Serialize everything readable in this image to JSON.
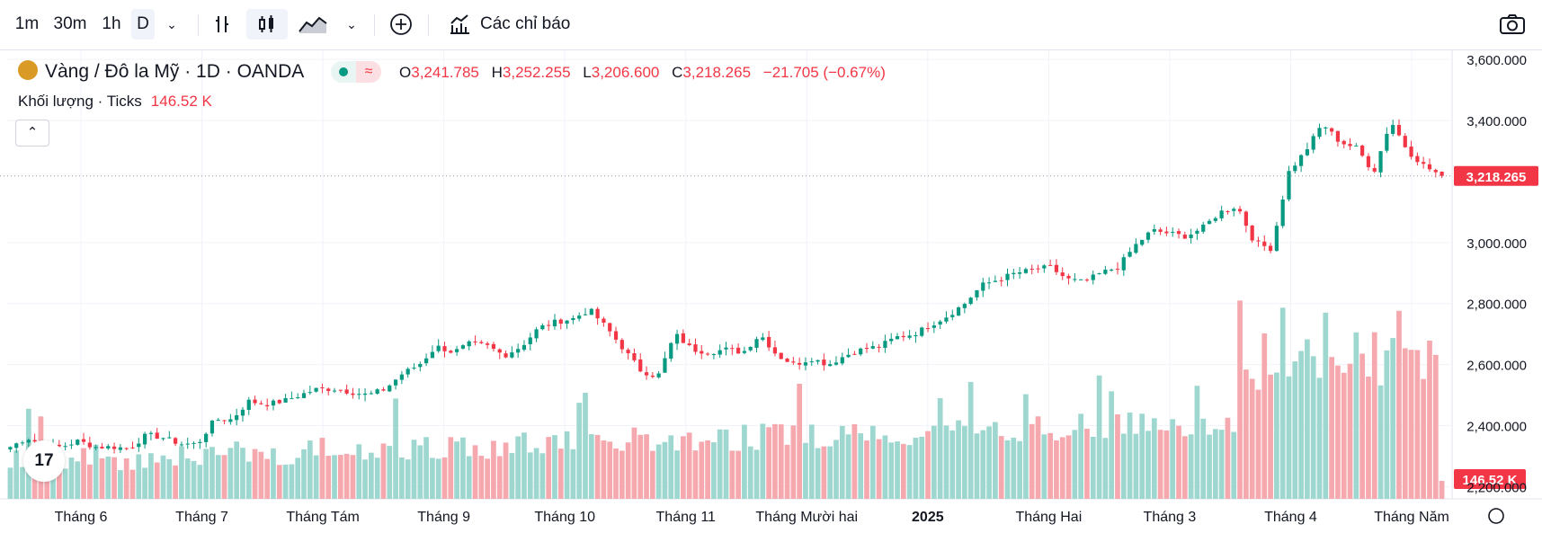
{
  "toolbar": {
    "intervals": [
      "1m",
      "30m",
      "1h",
      "D"
    ],
    "selected_interval": "D",
    "indicators_label": "Các chỉ báo"
  },
  "legend": {
    "symbol": "Vàng / Đô la Mỹ · 1D · OANDA",
    "open_label": "O",
    "open": "3,241.785",
    "high_label": "H",
    "high": "3,252.255",
    "low_label": "L",
    "low": "3,206.600",
    "close_label": "C",
    "close": "3,218.265",
    "change": "−21.705 (−0.67%)",
    "volume_label": "Khối lượng · Ticks",
    "volume_value": "146.52 K"
  },
  "colors": {
    "up": "#089981",
    "down": "#f23645",
    "vol_up": "#9ed7cf",
    "vol_down": "#f5a8ae"
  },
  "chart_data": {
    "type": "candlestick",
    "title": "Vàng / Đô la Mỹ · 1D · OANDA",
    "y_axis_ticks": [
      "3,600.000",
      "3,400.000",
      "3,000.000",
      "2,800.000",
      "2,600.000",
      "2,400.000",
      "2,200.000"
    ],
    "ylim": [
      2160,
      3630
    ],
    "x_axis_labels": [
      "Tháng 6",
      "Tháng 7",
      "Tháng Tám",
      "Tháng 9",
      "Tháng 10",
      "Tháng 11",
      "Tháng Mười hai",
      "2025",
      "Tháng Hai",
      "Tháng 3",
      "Tháng 4",
      "Tháng Năm"
    ],
    "last_price": 3218.265,
    "last_price_label": "3,218.265",
    "last_volume_label": "146.52 K",
    "close_path_anchors": [
      2330,
      2360,
      2335,
      2330,
      2350,
      2330,
      2330,
      2325,
      2370,
      2360,
      2340,
      2340,
      2420,
      2420,
      2480,
      2470,
      2480,
      2500,
      2520,
      2520,
      2510,
      2500,
      2520,
      2570,
      2600,
      2660,
      2640,
      2670,
      2660,
      2630,
      2660,
      2720,
      2740,
      2750,
      2780,
      2720,
      2650,
      2580,
      2560,
      2700,
      2650,
      2640,
      2650,
      2640,
      2700,
      2630,
      2600,
      2620,
      2600,
      2630,
      2650,
      2660,
      2690,
      2700,
      2730,
      2760,
      2800,
      2860,
      2880,
      2900,
      2910,
      2920,
      2880,
      2870,
      2900,
      2920,
      2990,
      3040,
      3030,
      3020,
      3050,
      3100,
      3120,
      3000,
      2980,
      3230,
      3300,
      3390,
      3330,
      3310,
      3230,
      3400,
      3300,
      3250,
      3218.265
    ]
  }
}
